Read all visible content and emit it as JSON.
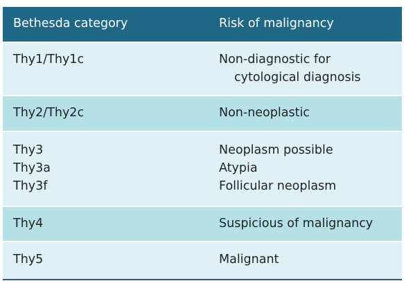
{
  "table": {
    "headers": [
      "Bethesda category",
      "Risk of malignancy"
    ],
    "rows": [
      {
        "category": [
          "Thy1/Thy1c"
        ],
        "risk": [
          "Non-diagnostic for",
          "cytological diagnosis"
        ]
      },
      {
        "category": [
          "Thy2/Thy2c"
        ],
        "risk": [
          "Non-neoplastic"
        ]
      },
      {
        "category": [
          "Thy3",
          "Thy3a",
          "Thy3f"
        ],
        "risk": [
          "Neoplasm possible",
          "Atypia",
          "Follicular neoplasm"
        ]
      },
      {
        "category": [
          "Thy4"
        ],
        "risk": [
          "Suspicious of malignancy"
        ]
      },
      {
        "category": [
          "Thy5"
        ],
        "risk": [
          "Malignant"
        ]
      }
    ]
  },
  "colors": {
    "header_bg": "#1e6787",
    "row_light": "#dff1f6",
    "row_dark": "#b5e0e6",
    "bottom_rule": "#2b5f82"
  }
}
